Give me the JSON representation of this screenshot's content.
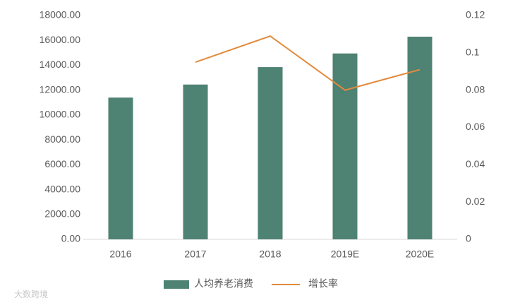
{
  "chart_data": {
    "type": "bar",
    "categories": [
      "2016",
      "2017",
      "2018",
      "2019E",
      "2020E"
    ],
    "series": [
      {
        "name": "人均养老消费",
        "color": "#4e8272",
        "values": [
          11400,
          12450,
          13850,
          14950,
          16300
        ]
      },
      {
        "name": "增长率",
        "color": "#e08a3c",
        "type": "line",
        "axis": "y2",
        "values": [
          null,
          0.095,
          0.109,
          0.08,
          0.091
        ]
      }
    ],
    "ylim": [
      0,
      18000
    ],
    "yticks": [
      {
        "value": 0,
        "label": "0.00"
      },
      {
        "value": 2000,
        "label": "2000.00"
      },
      {
        "value": 4000,
        "label": "4000.00"
      },
      {
        "value": 6000,
        "label": "6000.00"
      },
      {
        "value": 8000,
        "label": "8000.00"
      },
      {
        "value": 10000,
        "label": "10000.00"
      },
      {
        "value": 12000,
        "label": "12000.00"
      },
      {
        "value": 14000,
        "label": "14000.00"
      },
      {
        "value": 16000,
        "label": "16000.00"
      },
      {
        "value": 18000,
        "label": "18000.00"
      }
    ],
    "y2lim": [
      0,
      0.12
    ],
    "y2ticks": [
      0,
      0.02,
      0.04,
      0.06,
      0.08,
      0.1,
      0.12
    ],
    "grid": false,
    "legend": "bottom"
  },
  "watermark": "大数跨境"
}
